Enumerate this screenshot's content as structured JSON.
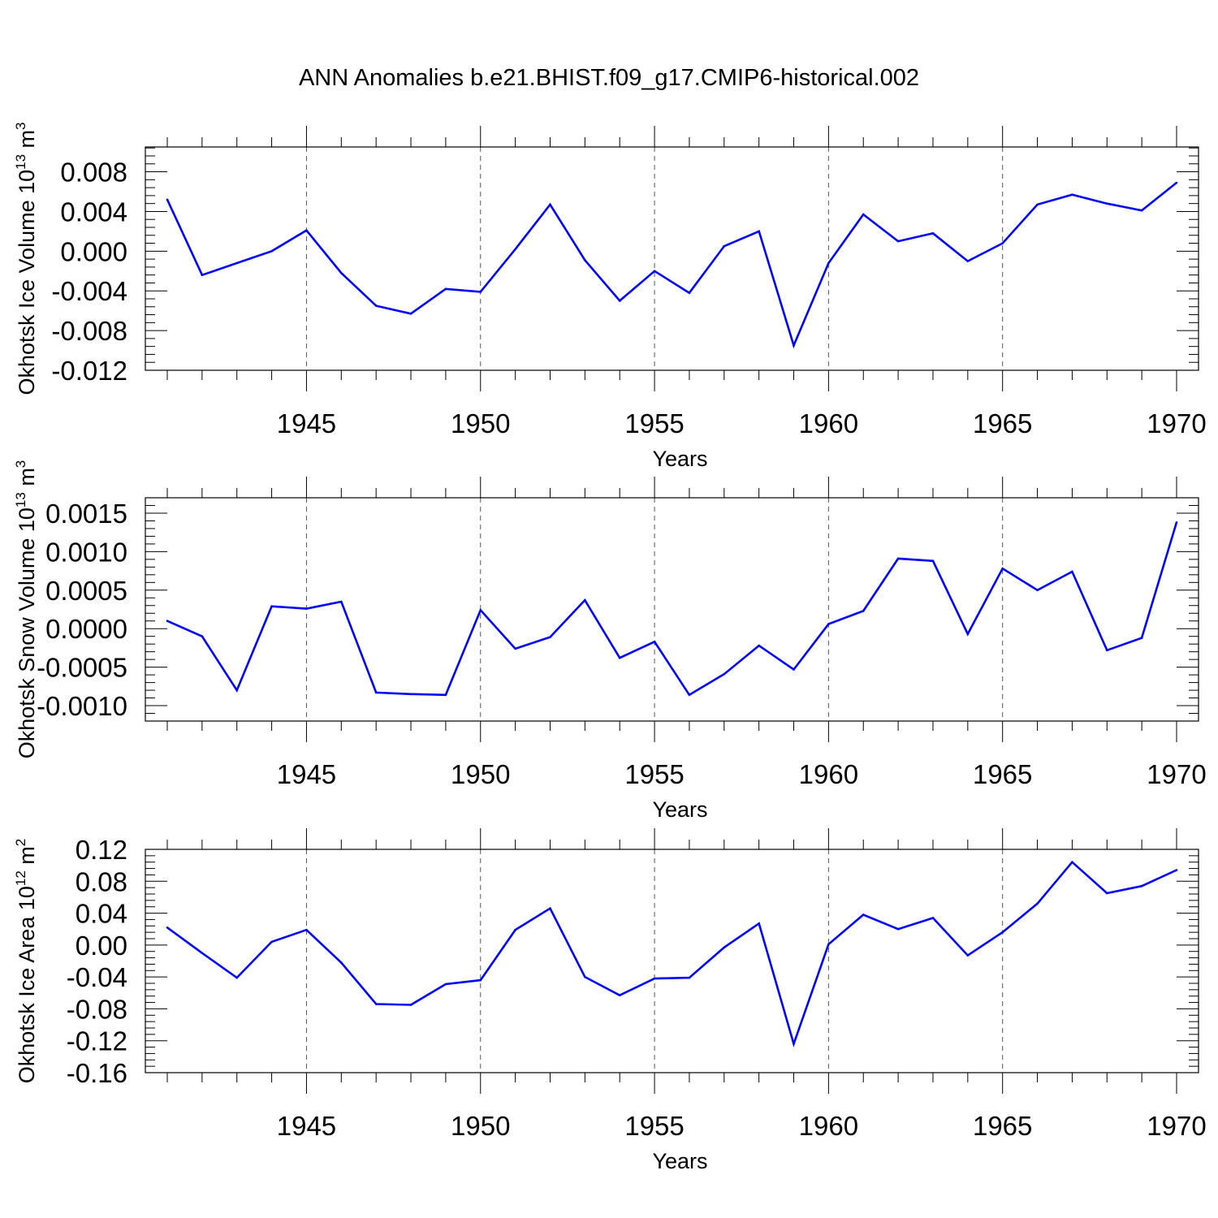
{
  "title": "ANN Anomalies b.e21.BHIST.f09_g17.CMIP6-historical.002",
  "line_color": "#0000ff",
  "chart_data": [
    {
      "type": "line",
      "ylabel": {
        "text": "Okhotsk Ice Volume 10",
        "sup": "13",
        "unit": " m",
        "unit_sup": "3"
      },
      "xlabel": "Years",
      "xlim": [
        1941,
        1970
      ],
      "x_ticks": [
        1945,
        1950,
        1955,
        1960,
        1965,
        1970
      ],
      "x_tick_labels": [
        "1945",
        "1950",
        "1955",
        "1960",
        "1965",
        "1970"
      ],
      "ylim": [
        -0.012,
        0.0105
      ],
      "y_ticks": [
        -0.012,
        -0.008,
        -0.004,
        0.0,
        0.004,
        0.008
      ],
      "y_tick_labels": [
        "-0.012",
        "-0.008",
        "-0.004",
        "0.000",
        "0.004",
        "0.008"
      ],
      "grid": "dashed vertical at major x ticks",
      "x": [
        1941,
        1942,
        1943,
        1944,
        1945,
        1946,
        1947,
        1948,
        1949,
        1950,
        1951,
        1952,
        1953,
        1954,
        1955,
        1956,
        1957,
        1958,
        1959,
        1960,
        1961,
        1962,
        1963,
        1964,
        1965,
        1966,
        1967,
        1968,
        1969,
        1970
      ],
      "series": [
        {
          "values": [
            0.0052,
            -0.0024,
            -0.0012,
            0.0,
            0.0021,
            -0.0022,
            -0.0055,
            -0.0063,
            -0.0038,
            -0.0041,
            0.0002,
            0.0047,
            -0.0009,
            -0.005,
            -0.002,
            -0.0042,
            0.0005,
            0.002,
            -0.0095,
            -0.0012,
            0.0037,
            0.001,
            0.0018,
            -0.001,
            0.0008,
            0.0047,
            0.0057,
            0.0048,
            0.0041,
            0.0069
          ]
        }
      ]
    },
    {
      "type": "line",
      "ylabel": {
        "text": "Okhotsk Snow Volume 10",
        "sup": "13",
        "unit": " m",
        "unit_sup": "3"
      },
      "xlabel": "Years",
      "xlim": [
        1941,
        1970
      ],
      "x_ticks": [
        1945,
        1950,
        1955,
        1960,
        1965,
        1970
      ],
      "x_tick_labels": [
        "1945",
        "1950",
        "1955",
        "1960",
        "1965",
        "1970"
      ],
      "ylim": [
        -0.0012,
        0.0017
      ],
      "y_ticks": [
        -0.001,
        -0.0005,
        0.0,
        0.0005,
        0.001,
        0.0015
      ],
      "y_tick_labels": [
        "-0.0010",
        "-0.0005",
        "0.0000",
        "0.0005",
        "0.0010",
        "0.0015"
      ],
      "grid": "dashed vertical at major x ticks",
      "x": [
        1941,
        1942,
        1943,
        1944,
        1945,
        1946,
        1947,
        1948,
        1949,
        1950,
        1951,
        1952,
        1953,
        1954,
        1955,
        1956,
        1957,
        1958,
        1959,
        1960,
        1961,
        1962,
        1963,
        1964,
        1965,
        1966,
        1967,
        1968,
        1969,
        1970
      ],
      "series": [
        {
          "values": [
            0.0001,
            -0.0001,
            -0.0008,
            0.00029,
            0.00026,
            0.00035,
            -0.00083,
            -0.00085,
            -0.00086,
            0.00024,
            -0.00026,
            -0.00011,
            0.00037,
            -0.00038,
            -0.00017,
            -0.00086,
            -0.00059,
            -0.00022,
            -0.00053,
            6e-05,
            0.00023,
            0.00091,
            0.00088,
            -7e-05,
            0.00078,
            0.0005,
            0.00074,
            -0.00028,
            -0.00012,
            0.00138
          ]
        }
      ]
    },
    {
      "type": "line",
      "ylabel": {
        "text": "Okhotsk Ice Area 10",
        "sup": "12",
        "unit": " m",
        "unit_sup": "2"
      },
      "xlabel": "Years",
      "xlim": [
        1941,
        1970
      ],
      "x_ticks": [
        1945,
        1950,
        1955,
        1960,
        1965,
        1970
      ],
      "x_tick_labels": [
        "1945",
        "1950",
        "1955",
        "1960",
        "1965",
        "1970"
      ],
      "ylim": [
        -0.16,
        0.12
      ],
      "y_ticks": [
        -0.16,
        -0.12,
        -0.08,
        -0.04,
        0.0,
        0.04,
        0.08,
        0.12
      ],
      "y_tick_labels": [
        "-0.16",
        "-0.12",
        "-0.08",
        "-0.04",
        "0.00",
        "0.04",
        "0.08",
        "0.12"
      ],
      "grid": "dashed vertical at major x ticks",
      "x": [
        1941,
        1942,
        1943,
        1944,
        1945,
        1946,
        1947,
        1948,
        1949,
        1950,
        1951,
        1952,
        1953,
        1954,
        1955,
        1956,
        1957,
        1958,
        1959,
        1960,
        1961,
        1962,
        1963,
        1964,
        1965,
        1966,
        1967,
        1968,
        1969,
        1970
      ],
      "series": [
        {
          "values": [
            0.022,
            -0.01,
            -0.041,
            0.004,
            0.019,
            -0.022,
            -0.074,
            -0.075,
            -0.049,
            -0.044,
            0.019,
            0.046,
            -0.04,
            -0.063,
            -0.042,
            -0.041,
            -0.003,
            0.027,
            -0.124,
            0.001,
            0.038,
            0.02,
            0.034,
            -0.013,
            0.016,
            0.052,
            0.104,
            0.065,
            0.074,
            0.094
          ]
        }
      ]
    }
  ]
}
